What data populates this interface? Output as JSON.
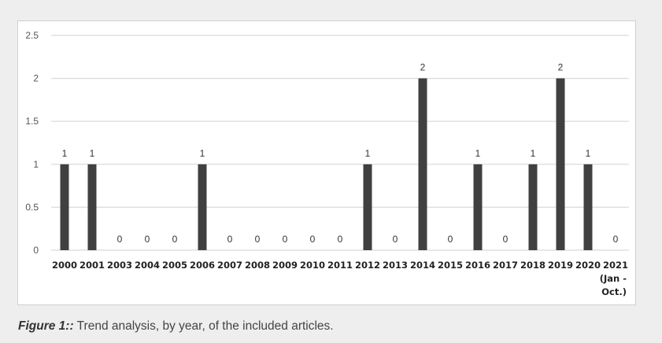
{
  "chart_data": {
    "type": "bar",
    "title": "",
    "xlabel": "",
    "ylabel": "",
    "categories": [
      "2000",
      "2001",
      "2003",
      "2004",
      "2005",
      "2006",
      "2007",
      "2008",
      "2009",
      "2010",
      "2011",
      "2012",
      "2013",
      "2014",
      "2015",
      "2016",
      "2017",
      "2018",
      "2019",
      "2020",
      "2021 (Jan - Oct.)"
    ],
    "category_lines": [
      [
        "2000"
      ],
      [
        "2001"
      ],
      [
        "2003"
      ],
      [
        "2004"
      ],
      [
        "2005"
      ],
      [
        "2006"
      ],
      [
        "2007"
      ],
      [
        "2008"
      ],
      [
        "2009"
      ],
      [
        "2010"
      ],
      [
        "2011"
      ],
      [
        "2012"
      ],
      [
        "2013"
      ],
      [
        "2014"
      ],
      [
        "2015"
      ],
      [
        "2016"
      ],
      [
        "2017"
      ],
      [
        "2018"
      ],
      [
        "2019"
      ],
      [
        "2020"
      ],
      [
        "2021",
        "(Jan -",
        "Oct.)"
      ]
    ],
    "values": [
      1,
      1,
      0,
      0,
      0,
      1,
      0,
      0,
      0,
      0,
      0,
      1,
      0,
      2,
      0,
      1,
      0,
      1,
      2,
      1,
      0
    ],
    "ylim": [
      0,
      2.5
    ],
    "yticks": [
      0,
      0.5,
      1,
      1.5,
      2,
      2.5
    ],
    "ytick_labels": [
      "0",
      "0.5",
      "1",
      "1.5",
      "2",
      "2.5"
    ],
    "grid": true,
    "data_labels": true,
    "colors": {
      "bar": "#404040",
      "grid": "#d9d9d9"
    }
  },
  "caption": {
    "label": "Figure 1::",
    "text": " Trend analysis, by year, of the included articles."
  }
}
